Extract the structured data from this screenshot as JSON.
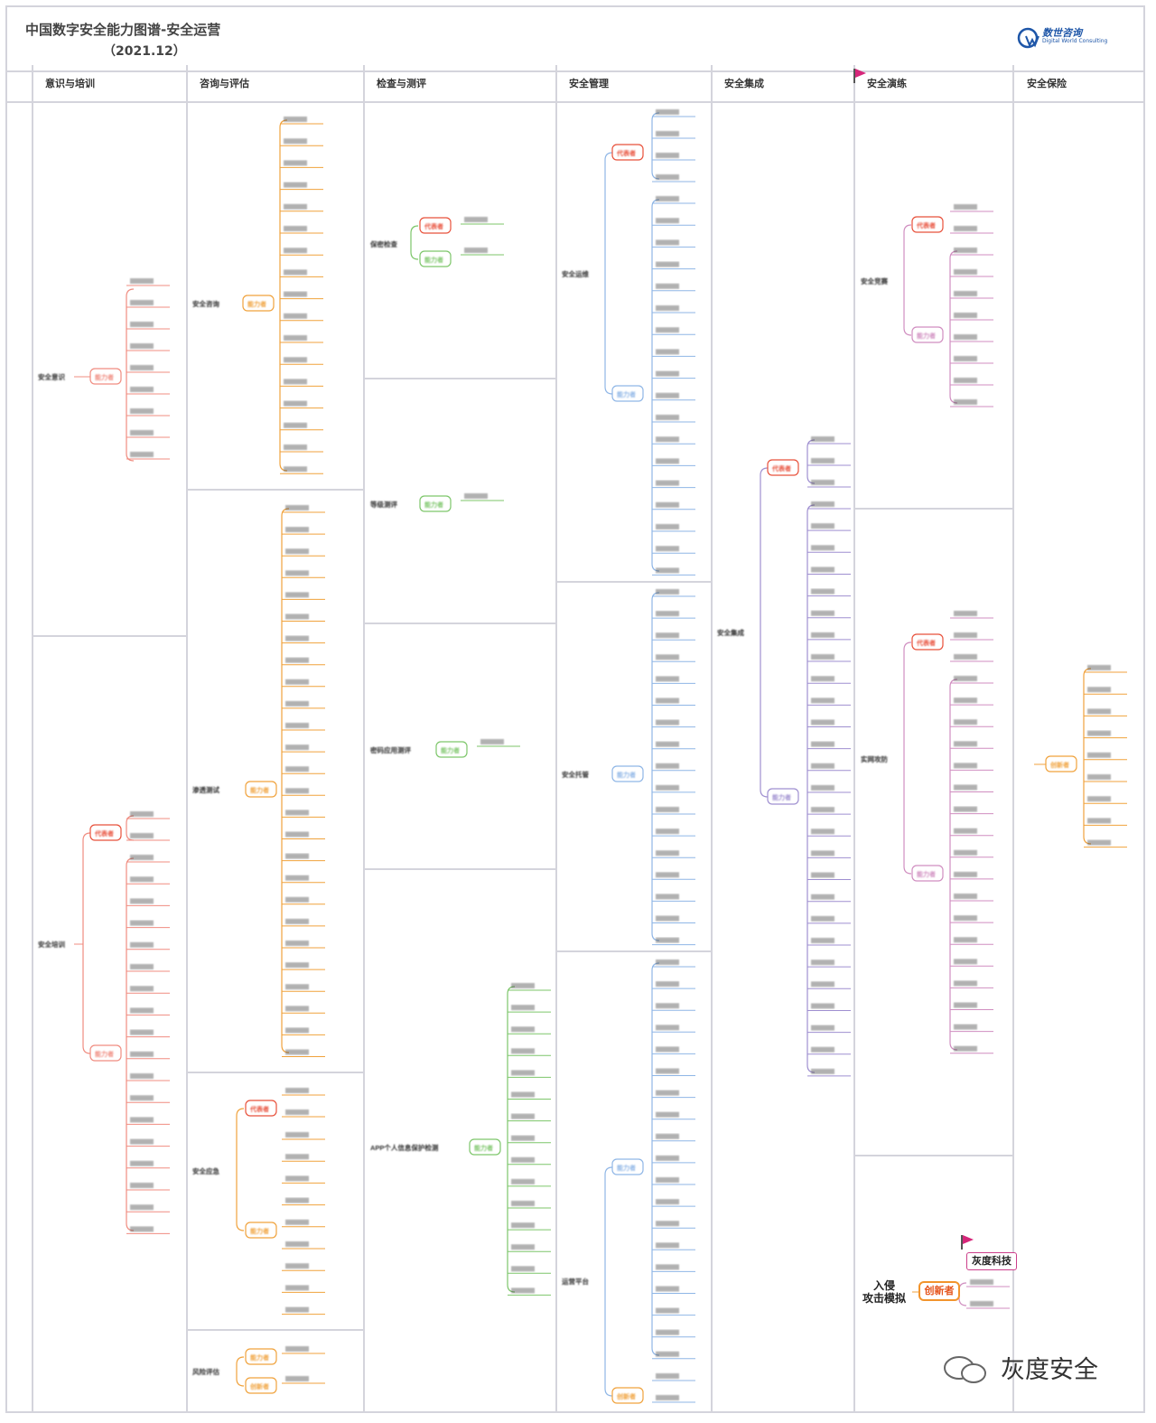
{
  "header": {
    "title": "中国数字安全能力图谱-安全运营",
    "subtitle": "（2021.12）",
    "logo_name": "数世咨询",
    "logo_sub": "Digital World Consulting"
  },
  "categories": [
    "意识与培训",
    "咨询与评估",
    "检查与测评",
    "安全管理",
    "安全集成",
    "安全演练",
    "安全保险"
  ],
  "icons": {
    "flag_color": "#d6267a",
    "flag": "flag-icon"
  },
  "role_labels": {
    "representative": "代表者",
    "capable": "能力者",
    "innovator": "创新者"
  },
  "branch_labels": {
    "awareness": "安全意识",
    "training": "安全培训",
    "consulting": "安全咨询",
    "pentest": "渗透测试",
    "response": "安全应急",
    "risk": "风险评估",
    "compliance": "保密检查",
    "grading": "等级测评",
    "crypto": "密码应用测评",
    "app_privacy": "APP个人信息保护检测",
    "ops": "安全运维",
    "hosting": "安全托管",
    "platform": "运营平台",
    "integration": "安全集成",
    "competition": "安全竞赛",
    "drill": "实网攻防"
  },
  "highlight": {
    "novice_line1": "入侵",
    "novice_line2": "攻击模拟",
    "innovator": "创新者",
    "vendor": "灰度科技"
  },
  "watermark": "灰度安全",
  "colors": {
    "orange": "#f0a23c",
    "red": "#e8503a",
    "salmon": "#f08c80",
    "green": "#7dc66a",
    "blue": "#8fb6e6",
    "purple": "#9f8fd0",
    "pink": "#d08ec0",
    "grid": "#d4d4dc"
  }
}
